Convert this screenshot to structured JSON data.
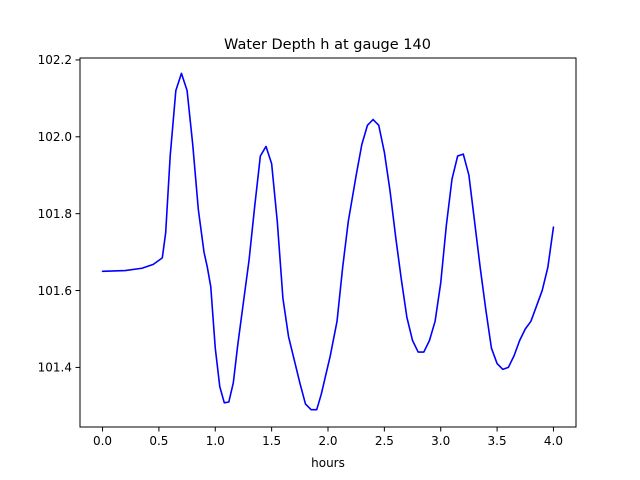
{
  "chart_data": {
    "type": "line",
    "title": "Water Depth h at gauge 140",
    "xlabel": "hours",
    "ylabel": "",
    "xlim": [
      -0.2,
      4.2
    ],
    "ylim": [
      101.245,
      102.205
    ],
    "xticks": [
      0.0,
      0.5,
      1.0,
      1.5,
      2.0,
      2.5,
      3.0,
      3.5,
      4.0
    ],
    "xtick_labels": [
      "0.0",
      "0.5",
      "1.0",
      "1.5",
      "2.0",
      "2.5",
      "3.0",
      "3.5",
      "4.0"
    ],
    "yticks": [
      101.4,
      101.6,
      101.8,
      102.0,
      102.2
    ],
    "ytick_labels": [
      "101.4",
      "101.6",
      "101.8",
      "102.0",
      "102.2"
    ],
    "grid": false,
    "series": [
      {
        "color": "#0000ff",
        "x": [
          0.0,
          0.2,
          0.35,
          0.45,
          0.53,
          0.56,
          0.6,
          0.65,
          0.7,
          0.75,
          0.8,
          0.85,
          0.9,
          0.93,
          0.96,
          1.0,
          1.04,
          1.08,
          1.12,
          1.16,
          1.2,
          1.25,
          1.3,
          1.35,
          1.4,
          1.45,
          1.5,
          1.55,
          1.6,
          1.65,
          1.7,
          1.75,
          1.8,
          1.85,
          1.9,
          1.94,
          1.98,
          2.02,
          2.08,
          2.13,
          2.18,
          2.25,
          2.3,
          2.35,
          2.4,
          2.45,
          2.5,
          2.55,
          2.6,
          2.65,
          2.7,
          2.75,
          2.8,
          2.85,
          2.9,
          2.95,
          3.0,
          3.05,
          3.1,
          3.15,
          3.2,
          3.25,
          3.3,
          3.35,
          3.4,
          3.45,
          3.5,
          3.55,
          3.6,
          3.65,
          3.7,
          3.75,
          3.8,
          3.85,
          3.9,
          3.95,
          4.0
        ],
        "y": [
          101.65,
          101.652,
          101.658,
          101.668,
          101.685,
          101.75,
          101.95,
          102.12,
          102.165,
          102.12,
          101.98,
          101.81,
          101.7,
          101.66,
          101.61,
          101.45,
          101.35,
          101.308,
          101.31,
          101.36,
          101.46,
          101.57,
          101.68,
          101.82,
          101.95,
          101.975,
          101.93,
          101.78,
          101.58,
          101.48,
          101.42,
          101.36,
          101.305,
          101.29,
          101.29,
          101.33,
          101.38,
          101.43,
          101.52,
          101.66,
          101.78,
          101.9,
          101.98,
          102.03,
          102.045,
          102.03,
          101.96,
          101.86,
          101.74,
          101.63,
          101.53,
          101.47,
          101.44,
          101.44,
          101.47,
          101.52,
          101.62,
          101.77,
          101.89,
          101.95,
          101.955,
          101.9,
          101.78,
          101.66,
          101.55,
          101.45,
          101.41,
          101.395,
          101.4,
          101.43,
          101.47,
          101.5,
          101.52,
          101.56,
          101.6,
          101.66,
          101.765
        ]
      }
    ]
  }
}
